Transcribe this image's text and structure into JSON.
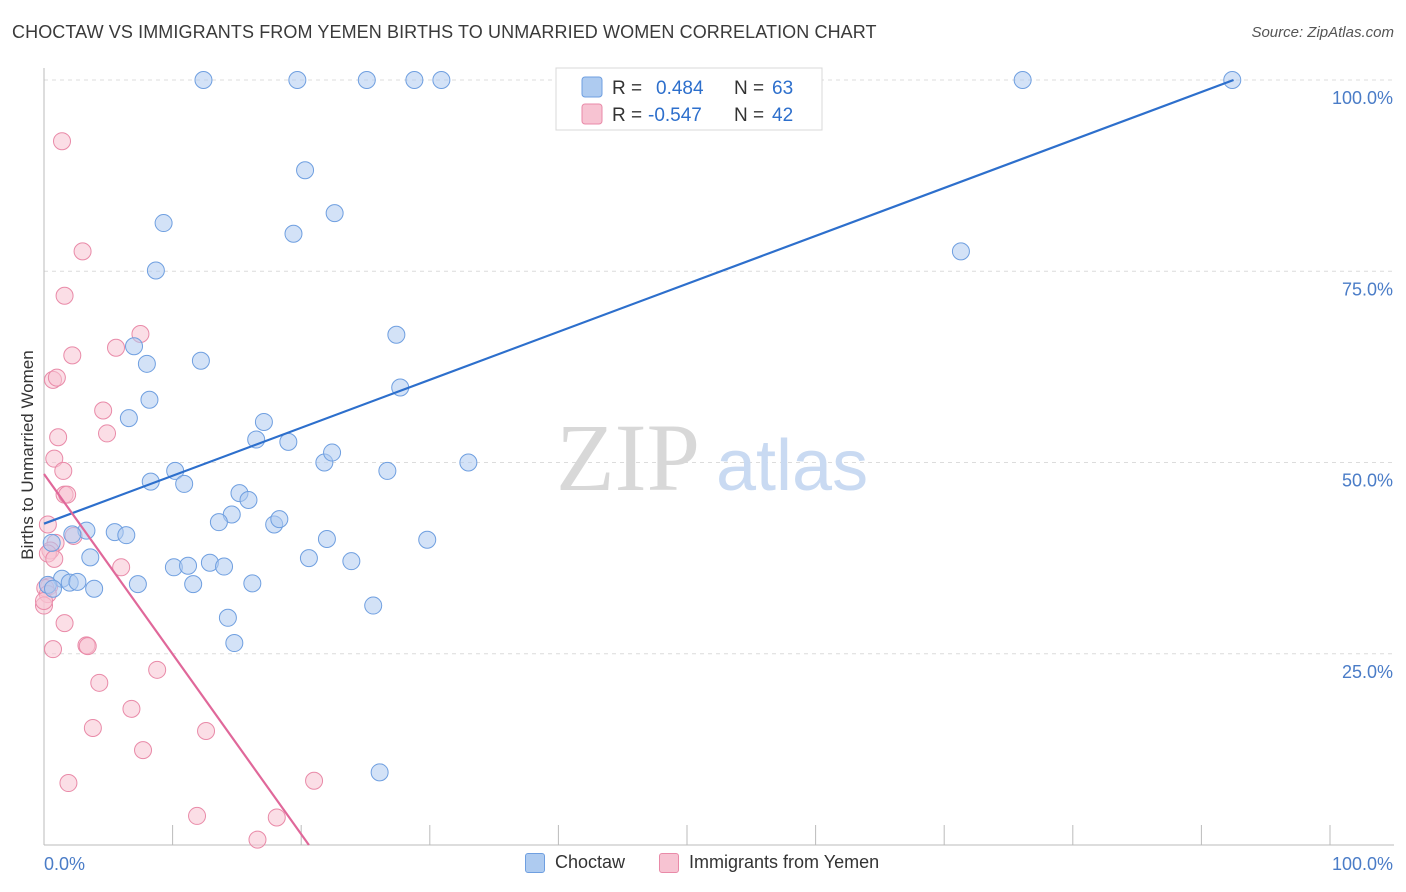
{
  "title": "CHOCTAW VS IMMIGRANTS FROM YEMEN BIRTHS TO UNMARRIED WOMEN CORRELATION CHART",
  "source": "Source: ZipAtlas.com",
  "watermark": {
    "zip": "ZIP",
    "atlas": "atlas"
  },
  "colors": {
    "blue_fill": "#aecbf0",
    "blue_stroke": "#6f9fe0",
    "blue_line": "#2d6fcc",
    "pink_fill": "#f7c3d2",
    "pink_stroke": "#e98aa8",
    "pink_line": "#e0689a",
    "grid": "#dcdcdc",
    "axis_text": "#4a7cc7"
  },
  "legend": {
    "rows": [
      {
        "r_label": "R = ",
        "r_value": "0.484",
        "n_label": "N = ",
        "n_value": "63"
      },
      {
        "r_label": "R = ",
        "r_value": "-0.547",
        "n_label": "N = ",
        "n_value": "42"
      }
    ]
  },
  "bottom_legend": {
    "series1": "Choctaw",
    "series2": "Immigrants from Yemen"
  },
  "chart_data": {
    "type": "scatter",
    "xlabel": "",
    "ylabel": "Births to Unmarried Women",
    "xlim": [
      0,
      100
    ],
    "ylim": [
      0,
      100
    ],
    "x_tick_labels": [
      "0.0%",
      "100.0%"
    ],
    "y_tick_labels": [
      "25.0%",
      "50.0%",
      "75.0%",
      "100.0%"
    ],
    "y_ticks": [
      25,
      50,
      75,
      100
    ],
    "series": [
      {
        "name": "Choctaw",
        "R": 0.484,
        "N": 63,
        "trend": {
          "x0": 0,
          "y0": 42,
          "x1": 92.5,
          "y1": 100
        },
        "points": [
          [
            12.4,
            100
          ],
          [
            19.7,
            100
          ],
          [
            25.1,
            100
          ],
          [
            28.8,
            100
          ],
          [
            30.9,
            100
          ],
          [
            76.1,
            100
          ],
          [
            92.4,
            100
          ],
          [
            20.3,
            88.2
          ],
          [
            9.3,
            81.3
          ],
          [
            19.4,
            79.9
          ],
          [
            22.6,
            82.6
          ],
          [
            71.3,
            77.6
          ],
          [
            8.7,
            75.1
          ],
          [
            7.0,
            65.2
          ],
          [
            8.0,
            62.9
          ],
          [
            12.2,
            63.3
          ],
          [
            27.4,
            66.7
          ],
          [
            6.6,
            55.8
          ],
          [
            8.2,
            58.2
          ],
          [
            27.7,
            59.8
          ],
          [
            17.1,
            55.3
          ],
          [
            16.5,
            53.0
          ],
          [
            19.0,
            52.7
          ],
          [
            21.8,
            50.0
          ],
          [
            22.4,
            51.3
          ],
          [
            26.7,
            48.9
          ],
          [
            33.0,
            50.0
          ],
          [
            10.2,
            48.9
          ],
          [
            8.3,
            47.5
          ],
          [
            10.9,
            47.2
          ],
          [
            15.2,
            46.0
          ],
          [
            15.9,
            45.1
          ],
          [
            14.6,
            43.2
          ],
          [
            13.6,
            42.2
          ],
          [
            17.9,
            41.9
          ],
          [
            18.3,
            42.6
          ],
          [
            3.3,
            41.1
          ],
          [
            2.2,
            40.6
          ],
          [
            5.5,
            40.9
          ],
          [
            6.4,
            40.5
          ],
          [
            22.0,
            40.0
          ],
          [
            29.8,
            39.9
          ],
          [
            0.6,
            39.5
          ],
          [
            3.6,
            37.6
          ],
          [
            20.6,
            37.5
          ],
          [
            23.9,
            37.1
          ],
          [
            10.1,
            36.3
          ],
          [
            11.2,
            36.5
          ],
          [
            12.9,
            36.9
          ],
          [
            14.0,
            36.4
          ],
          [
            1.4,
            34.8
          ],
          [
            2.0,
            34.3
          ],
          [
            2.6,
            34.4
          ],
          [
            7.3,
            34.1
          ],
          [
            11.6,
            34.1
          ],
          [
            16.2,
            34.2
          ],
          [
            3.9,
            33.5
          ],
          [
            0.3,
            34.0
          ],
          [
            0.7,
            33.5
          ],
          [
            14.3,
            29.7
          ],
          [
            25.6,
            31.3
          ],
          [
            14.8,
            26.4
          ],
          [
            26.1,
            9.5
          ]
        ]
      },
      {
        "name": "Immigrants from Yemen",
        "R": -0.547,
        "N": 42,
        "trend": {
          "x0": 0,
          "y0": 48.5,
          "x1": 20.6,
          "y1": 0
        },
        "points": [
          [
            1.4,
            92.0
          ],
          [
            3.0,
            77.6
          ],
          [
            1.6,
            71.8
          ],
          [
            7.5,
            66.8
          ],
          [
            2.2,
            64.0
          ],
          [
            5.6,
            65.0
          ],
          [
            0.7,
            60.8
          ],
          [
            1.0,
            61.1
          ],
          [
            4.6,
            56.8
          ],
          [
            4.9,
            53.8
          ],
          [
            1.1,
            53.3
          ],
          [
            0.8,
            50.5
          ],
          [
            1.5,
            48.9
          ],
          [
            1.6,
            45.8
          ],
          [
            1.8,
            45.8
          ],
          [
            0.3,
            41.9
          ],
          [
            2.3,
            40.4
          ],
          [
            0.9,
            39.5
          ],
          [
            0.5,
            38.5
          ],
          [
            0.3,
            38.1
          ],
          [
            0.8,
            37.4
          ],
          [
            6.0,
            36.3
          ],
          [
            0.4,
            33.8
          ],
          [
            0.1,
            33.6
          ],
          [
            0.3,
            32.8
          ],
          [
            0.0,
            31.3
          ],
          [
            1.6,
            29.0
          ],
          [
            3.3,
            26.1
          ],
          [
            3.4,
            26.0
          ],
          [
            0.7,
            25.6
          ],
          [
            8.8,
            22.9
          ],
          [
            4.3,
            21.2
          ],
          [
            6.8,
            17.8
          ],
          [
            3.8,
            15.3
          ],
          [
            7.7,
            12.4
          ],
          [
            12.6,
            14.9
          ],
          [
            1.9,
            8.1
          ],
          [
            21.0,
            8.4
          ],
          [
            11.9,
            3.8
          ],
          [
            18.1,
            3.6
          ],
          [
            16.6,
            0.7
          ],
          [
            0.0,
            31.9
          ]
        ]
      }
    ]
  }
}
